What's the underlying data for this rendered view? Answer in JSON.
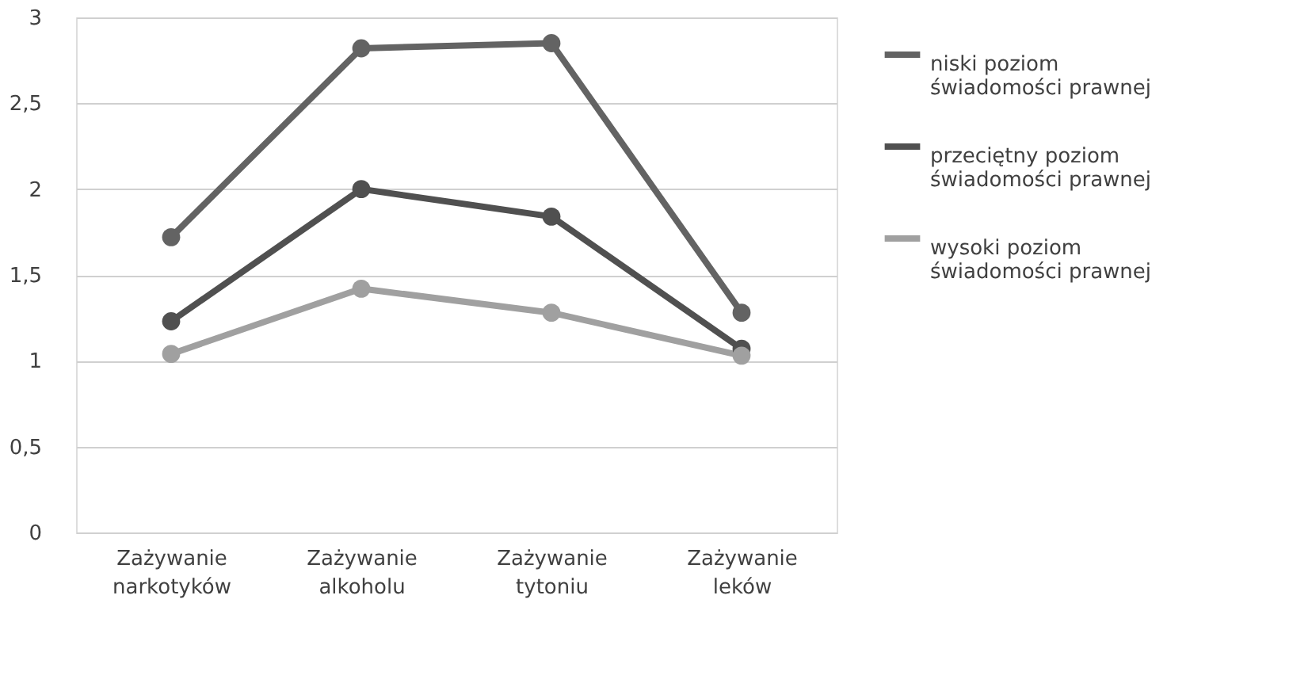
{
  "chart_data": {
    "type": "line",
    "categories": [
      "Zażywanie narkotyków",
      "Zażywanie alkoholu",
      "Zażywanie tytoniu",
      "Zażywanie leków"
    ],
    "series": [
      {
        "name": "niski poziom świadomości prawnej",
        "color": "#636363",
        "values": [
          1.72,
          2.82,
          2.85,
          1.28
        ]
      },
      {
        "name": "przeciętny poziom świadomości prawnej",
        "color": "#505050",
        "values": [
          1.23,
          2.0,
          1.84,
          1.07
        ]
      },
      {
        "name": "wysoki poziom świadomości prawnej",
        "color": "#a0a0a0",
        "values": [
          1.04,
          1.42,
          1.28,
          1.03
        ]
      }
    ],
    "ylim": [
      0,
      3
    ],
    "yticks": [
      0,
      {
        "value": 0.5,
        "label": "0,5"
      },
      1,
      {
        "value": 1.5,
        "label": "1,5"
      },
      2,
      {
        "value": 2.5,
        "label": "2,5"
      },
      3
    ],
    "grid": "y",
    "legend": "right",
    "marker": "circle",
    "line_style": "solid"
  }
}
